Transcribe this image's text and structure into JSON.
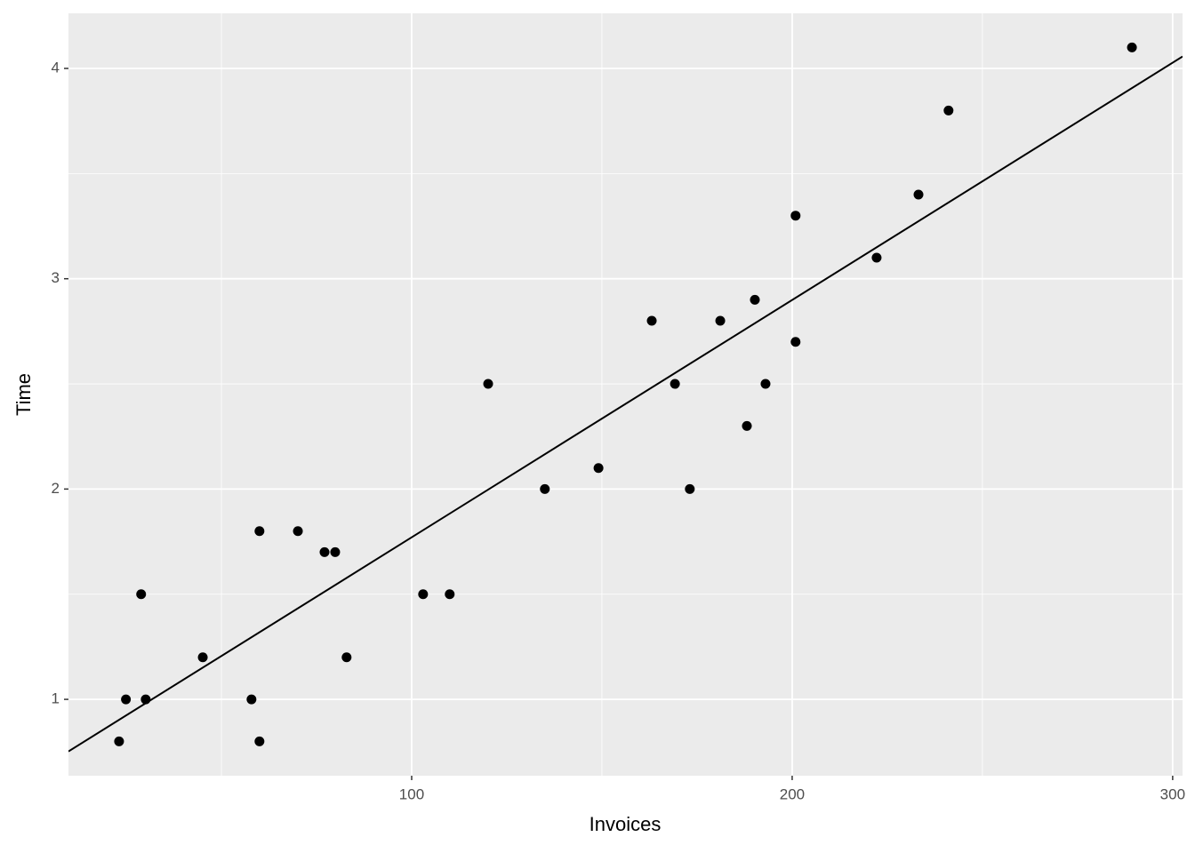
{
  "chart_data": {
    "type": "scatter",
    "x_label": "Invoices",
    "y_label": "Time",
    "x": [
      23.1,
      24.9,
      28.9,
      30.1,
      45.1,
      57.9,
      60.0,
      60.0,
      70.1,
      77.1,
      79.9,
      82.9,
      103.0,
      110.0,
      120.1,
      135.0,
      149.1,
      163.1,
      169.2,
      173.1,
      181.1,
      188.1,
      190.2,
      193.0,
      200.9,
      200.9,
      222.2,
      233.2,
      241.1,
      289.3
    ],
    "y": [
      0.8,
      1.0,
      1.5,
      1.0,
      1.2,
      1.0,
      1.8,
      0.8,
      1.8,
      1.7,
      1.7,
      1.2,
      1.5,
      1.5,
      2.5,
      2.0,
      2.1,
      2.8,
      2.5,
      2.0,
      2.8,
      2.3,
      2.9,
      2.5,
      2.7,
      3.3,
      3.1,
      3.4,
      3.8,
      4.1
    ],
    "color": "#000000",
    "smooth": "lm",
    "xlim": [
      9.8,
      302.6
    ],
    "ylim": [
      0.637,
      4.262
    ],
    "xticks": [
      100,
      200,
      300
    ],
    "yticks": [
      1,
      2,
      3,
      4
    ],
    "grid": true
  }
}
